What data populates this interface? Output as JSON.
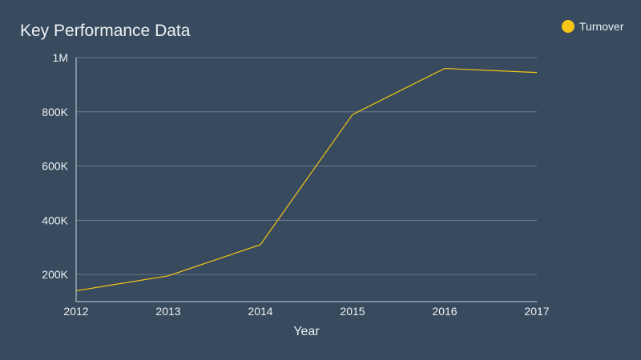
{
  "chart_data": {
    "type": "line",
    "title": "Key Performance Data",
    "xlabel": "Year",
    "ylabel": "",
    "categories": [
      "2012",
      "2013",
      "2014",
      "2015",
      "2016",
      "2017"
    ],
    "series": [
      {
        "name": "Turnover",
        "color": "#f5c518",
        "values": [
          140000,
          195000,
          310000,
          790000,
          960000,
          945000
        ]
      }
    ],
    "ylim": [
      100000,
      1000000
    ],
    "yticks": [
      {
        "value": 200000,
        "label": "200K"
      },
      {
        "value": 400000,
        "label": "400K"
      },
      {
        "value": 600000,
        "label": "600K"
      },
      {
        "value": 800000,
        "label": "800K"
      },
      {
        "value": 1000000,
        "label": "1M"
      }
    ],
    "grid": true,
    "legend_position": "top-right"
  },
  "colors": {
    "background": "#374a5e",
    "grid": "#6b7c8c",
    "axis": "#9aa7b3",
    "text": "#eef1f4"
  }
}
